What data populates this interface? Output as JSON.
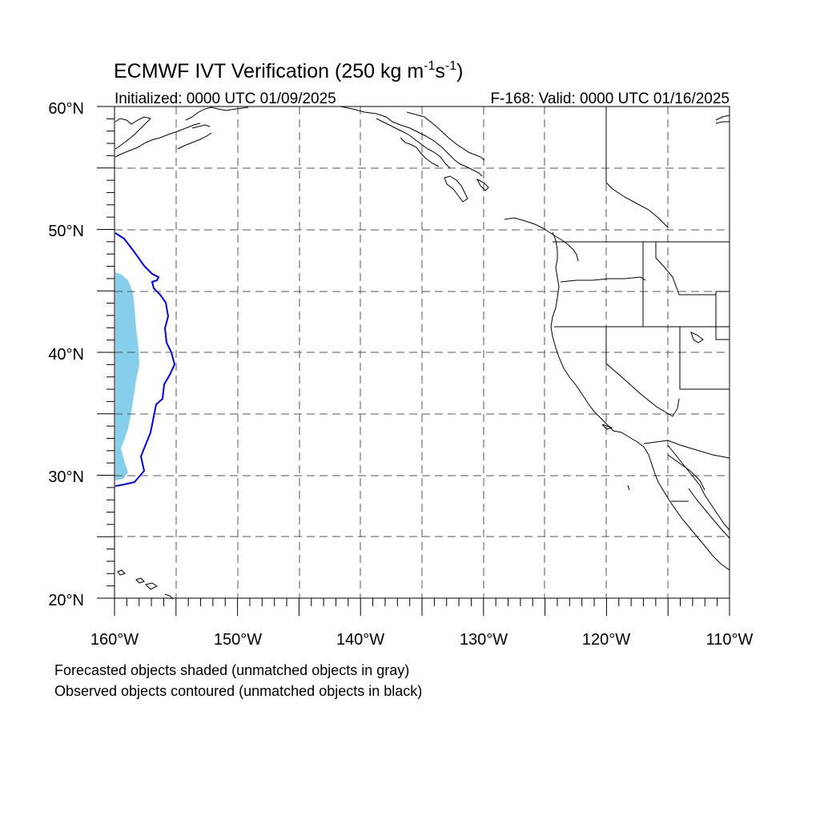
{
  "title": {
    "main": "ECMWF IVT Verification (250 kg m",
    "sup1": "-1",
    "mid": "s",
    "sup2": "-1",
    "end": ")"
  },
  "initialized": "Initialized: 0000 UTC 01/09/2025",
  "valid": "F-168: Valid: 0000 UTC 01/16/2025",
  "lat_labels": [
    "60°N",
    "50°N",
    "40°N",
    "30°N",
    "20°N"
  ],
  "lon_labels": [
    "160°W",
    "150°W",
    "140°W",
    "130°W",
    "120°W",
    "110°W"
  ],
  "legend": {
    "forecast": "Forecasted objects shaded (unmatched objects in gray)",
    "observed": "Observed objects contoured (unmatched objects in black)"
  },
  "colors": {
    "forecast_fill": "#87CEEB",
    "observed_contour": "#0000EE",
    "coast": "#000000",
    "grid": "#555555"
  },
  "map": {
    "lon_range": [
      -160,
      -110
    ],
    "lat_range": [
      20,
      60
    ],
    "grid_interval_deg": 5,
    "label_interval_deg": 10
  }
}
